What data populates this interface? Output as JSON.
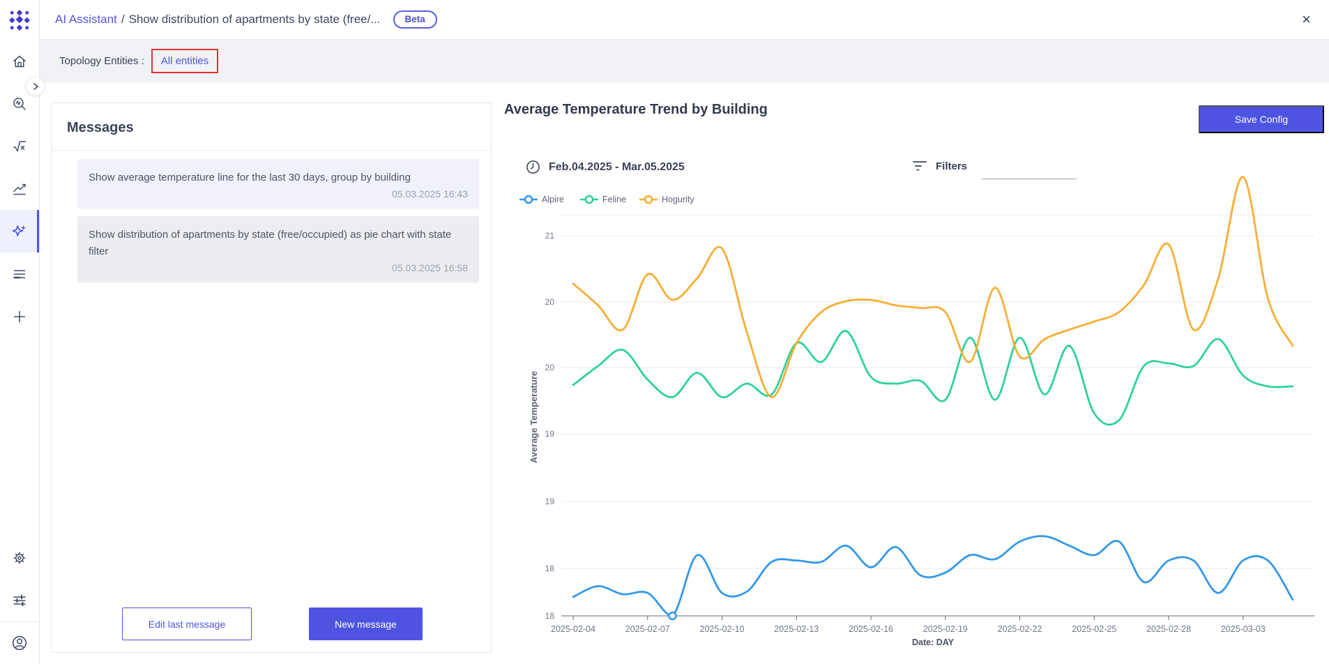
{
  "header": {
    "app": "AI Assistant",
    "separator": "/",
    "title_truncated": "Show distribution of apartments by state (free/...",
    "beta_badge": "Beta",
    "close_icon": "×"
  },
  "sidebar": {
    "icons": [
      "home",
      "explore-search",
      "formula-sqrt",
      "trend-chart",
      "ai-sparkles",
      "list",
      "add",
      "settings-gear",
      "sliders",
      "user-profile"
    ],
    "active": "ai-sparkles"
  },
  "topology": {
    "label": "Topology Entities :",
    "value": "All entities",
    "highlight_color": "#e42f2f"
  },
  "messages": {
    "title": "Messages",
    "items": [
      {
        "text": "Show average temperature line for the last 30 days, group by building",
        "timestamp": "05.03.2025 16:43"
      },
      {
        "text": "Show distribution of apartments by state (free/occupied) as pie chart with state filter",
        "timestamp": "05.03.2025 16:58"
      }
    ],
    "edit_button": "Edit last message",
    "new_button": "New message"
  },
  "chart_header": {
    "title": "Average Temperature Trend by Building",
    "save_button": "Save Config",
    "date_range": "Feb.04.2025 - Mar.05.2025",
    "filters_label": "Filters"
  },
  "colors": {
    "accent_indigo": "#4e54e1",
    "link_indigo": "#5257dd",
    "alpire_blue": "#3398e8",
    "feline_green": "#2dd19c",
    "hogurity_orange": "#f7ae33",
    "grid_line": "#e7ebf1",
    "axis_line": "#5f6673"
  },
  "chart_data": {
    "type": "line",
    "title": "Average Temperature Trend by Building",
    "xlabel": "Date: DAY",
    "ylabel": "Average Temperature",
    "legend_position": "top-left",
    "grid": "horizontal-only",
    "smooth": true,
    "x": [
      "2025-02-04",
      "2025-02-05",
      "2025-02-06",
      "2025-02-07",
      "2025-02-08",
      "2025-02-09",
      "2025-02-10",
      "2025-02-11",
      "2025-02-12",
      "2025-02-13",
      "2025-02-14",
      "2025-02-15",
      "2025-02-16",
      "2025-02-17",
      "2025-02-18",
      "2025-02-19",
      "2025-02-20",
      "2025-02-21",
      "2025-02-22",
      "2025-02-23",
      "2025-02-24",
      "2025-02-25",
      "2025-02-26",
      "2025-02-27",
      "2025-02-28",
      "2025-03-01",
      "2025-03-02",
      "2025-03-03",
      "2025-03-04",
      "2025-03-05"
    ],
    "x_tick_step": 3,
    "ylim": [
      18,
      21.3
    ],
    "y_tick_labels": [
      "21",
      "20",
      "20",
      "19",
      "19",
      "18",
      "18"
    ],
    "y_axis_note": "gridlines every 0.5 unit, labels show truncated integers (hence repeats), unlabeled top border line",
    "series": [
      {
        "name": "Alpire",
        "color": "#3398e8",
        "values": [
          18.14,
          18.22,
          18.16,
          18.17,
          18.0,
          18.45,
          18.17,
          18.18,
          18.4,
          18.41,
          18.4,
          18.52,
          18.36,
          18.51,
          18.3,
          18.32,
          18.45,
          18.42,
          18.55,
          18.59,
          18.52,
          18.45,
          18.55,
          18.25,
          18.41,
          18.41,
          18.17,
          18.41,
          18.41,
          18.12
        ]
      },
      {
        "name": "Feline",
        "color": "#2dd19c",
        "values": [
          19.71,
          19.85,
          19.97,
          19.75,
          19.62,
          19.8,
          19.62,
          19.72,
          19.64,
          20.02,
          19.88,
          20.11,
          19.77,
          19.72,
          19.74,
          19.6,
          20.06,
          19.6,
          20.06,
          19.64,
          20.0,
          19.5,
          19.45,
          19.85,
          19.87,
          19.85,
          20.05,
          19.78,
          19.7,
          19.7
        ]
      },
      {
        "name": "Hogurity",
        "color": "#f7ae33",
        "values": [
          20.46,
          20.3,
          20.12,
          20.53,
          20.34,
          20.5,
          20.72,
          20.1,
          19.62,
          20.02,
          20.25,
          20.33,
          20.34,
          20.3,
          20.28,
          20.25,
          19.88,
          20.43,
          19.92,
          20.05,
          20.12,
          20.18,
          20.25,
          20.45,
          20.75,
          20.12,
          20.5,
          21.25,
          20.35,
          20.0
        ]
      }
    ],
    "point_marker": {
      "series": "Alpire",
      "x": "2025-02-08",
      "value": 18.0
    }
  }
}
